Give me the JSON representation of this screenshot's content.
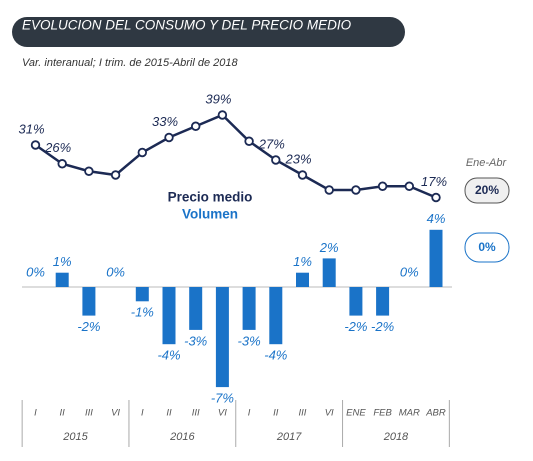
{
  "chart_data": {
    "type": "bar-line",
    "title": "EVOLUCION DEL CONSUMO Y DEL PRECIO MEDIO",
    "subtitle": "Var. interanual; I trim. de 2015-Abril de 2018",
    "categories": [
      "I",
      "II",
      "III",
      "VI",
      "I",
      "II",
      "III",
      "VI",
      "I",
      "II",
      "III",
      "VI",
      "ENE",
      "FEB",
      "MAR",
      "ABR"
    ],
    "groups": [
      {
        "label": "2015",
        "size": 4
      },
      {
        "label": "2016",
        "size": 4
      },
      {
        "label": "2017",
        "size": 4
      },
      {
        "label": "2018",
        "size": 4
      }
    ],
    "series": [
      {
        "name": "Precio medio",
        "color": "#1c2a54",
        "kind": "line",
        "values": [
          31,
          26,
          24,
          23,
          29,
          33,
          36,
          39,
          32,
          27,
          23,
          19,
          19,
          20,
          20,
          17
        ],
        "value_labels": [
          "31%",
          "26%",
          null,
          null,
          null,
          "33%",
          null,
          "39%",
          null,
          "27%",
          "23%",
          null,
          null,
          null,
          null,
          "17%"
        ]
      },
      {
        "name": "Volumen",
        "color": "#1a73c8",
        "kind": "bar",
        "values": [
          0,
          1,
          -2,
          0,
          -1,
          -4,
          -3,
          -7,
          -3,
          -4,
          1,
          2,
          -2,
          -2,
          0,
          4
        ],
        "value_labels": [
          "0%",
          "1%",
          "-2%",
          "0%",
          "-1%",
          "-4%",
          "-3%",
          "-7%",
          "-3%",
          "-4%",
          "1%",
          "2%",
          "-2%",
          "-2%",
          "0%",
          "4%"
        ]
      }
    ],
    "side": {
      "title": "Ene-Abr",
      "price": "20%",
      "volume": "0%"
    }
  }
}
